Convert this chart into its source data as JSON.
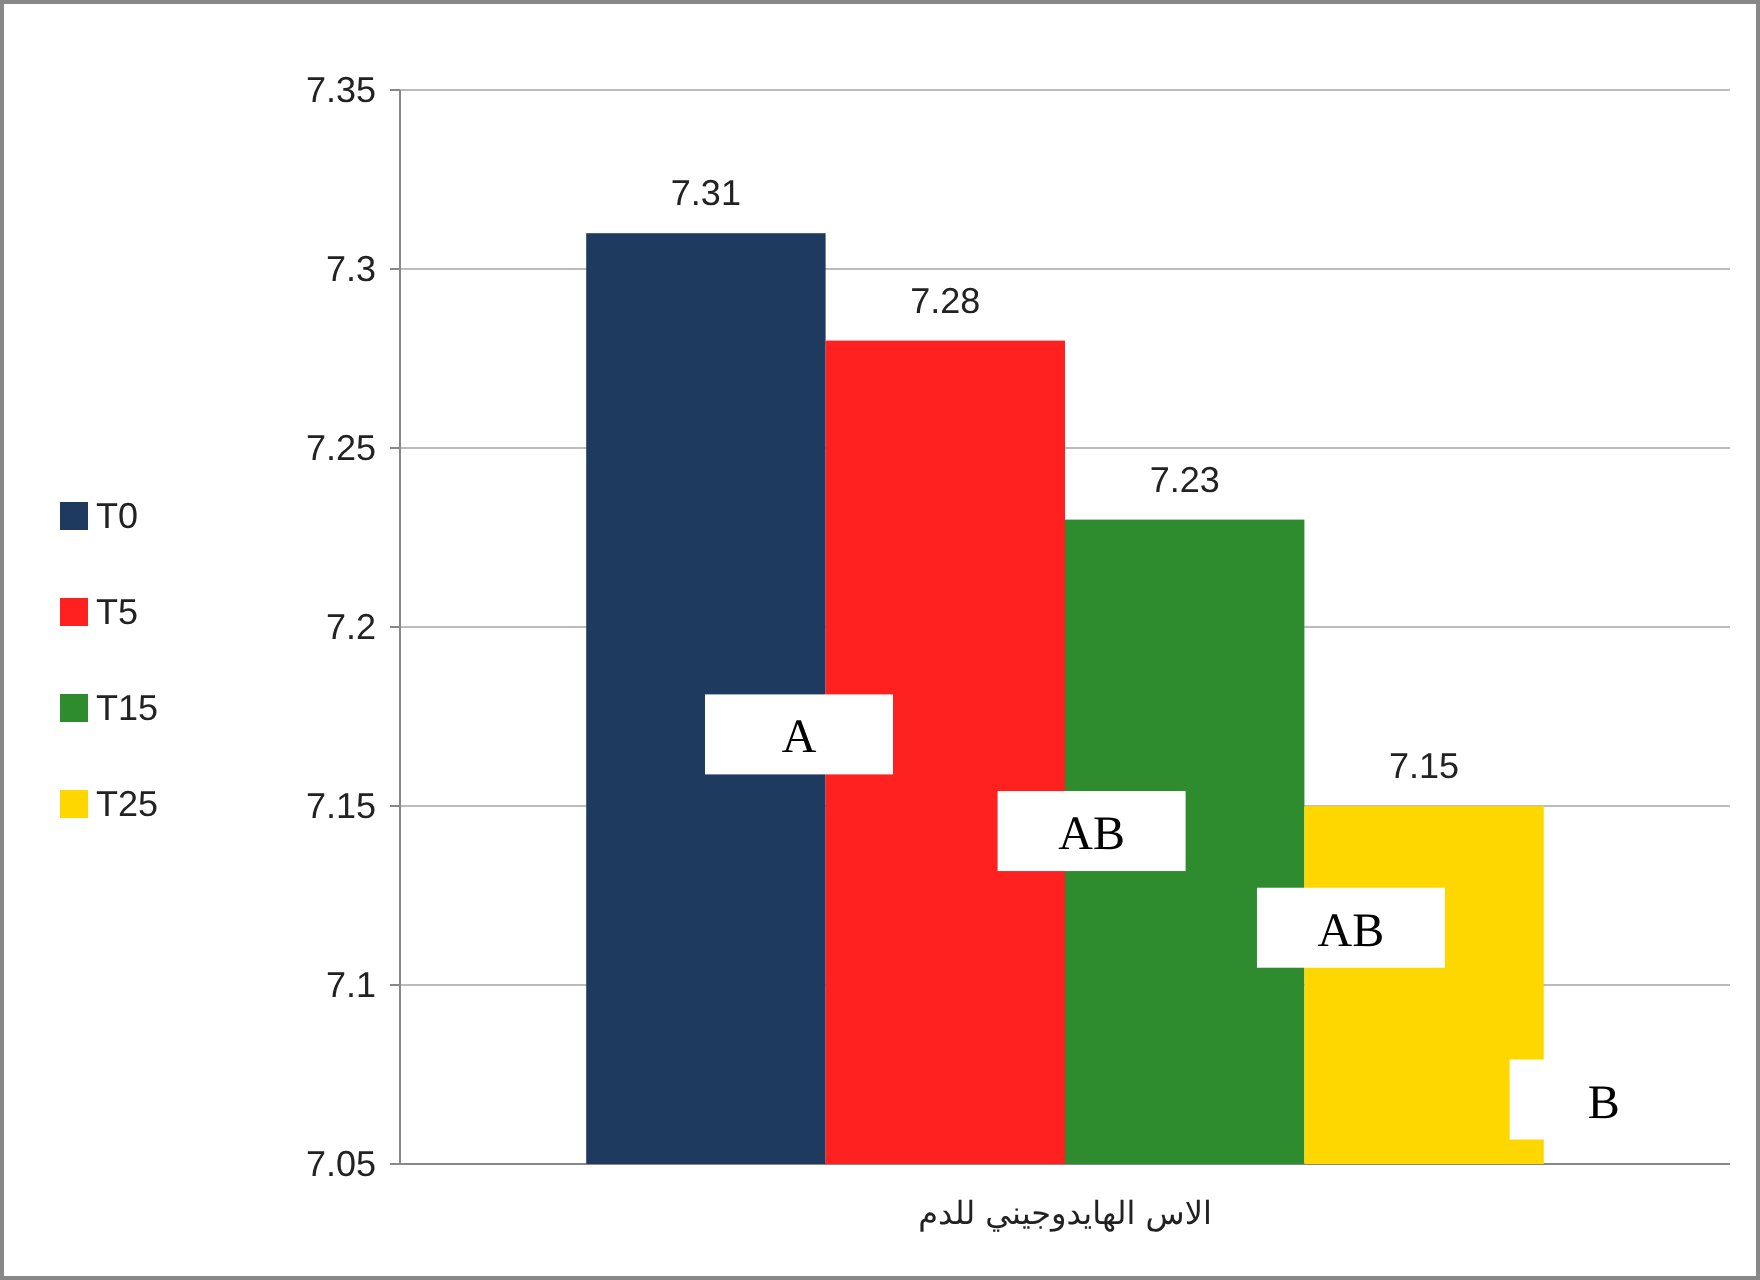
{
  "chart_data": {
    "type": "bar",
    "categories": [
      "الاس الهايدوجيني للدم"
    ],
    "series": [
      {
        "name": "T0",
        "color": "#1f3a5f",
        "values": [
          7.31
        ]
      },
      {
        "name": "T5",
        "color": "#ff2020",
        "values": [
          7.28
        ]
      },
      {
        "name": "T15",
        "color": "#2e8b2e",
        "values": [
          7.23
        ]
      },
      {
        "name": "T25",
        "color": "#ffd700",
        "values": [
          7.15
        ]
      }
    ],
    "ylim": [
      7.05,
      7.35
    ],
    "yticks": [
      7.05,
      7.1,
      7.15,
      7.2,
      7.25,
      7.3,
      7.35
    ],
    "grid": "y",
    "legend": "left",
    "data_labels": true,
    "annotations": [
      "A",
      "AB",
      "AB",
      "B"
    ]
  }
}
